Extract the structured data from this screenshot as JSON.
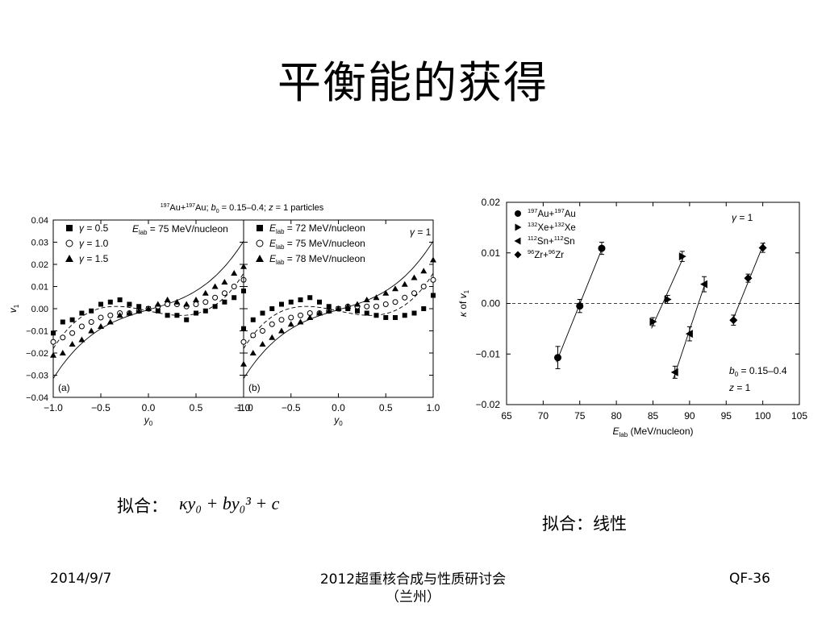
{
  "slide": {
    "title": "平衡能的获得",
    "fit_label_left": "拟合：",
    "fit_formula": "κy₀ + by₀³ + c",
    "fit_label_right": "拟合：线性",
    "footer_date": "2014/9/7",
    "footer_conference": "2012超重核合成与性质研讨会",
    "footer_location": "（兰州）",
    "footer_code": "QF-36"
  },
  "chart_data": [
    {
      "type": "scatter",
      "panel": "a",
      "title": "197Au+197Au; b0 = 0.15–0.4; z = 1 particles",
      "panel_label": "(a)",
      "annotation": "E_lab = 75 MeV/nucleon",
      "xlabel": "y0",
      "ylabel": "v1",
      "xlim": [
        -1.0,
        1.0
      ],
      "ylim": [
        -0.04,
        0.04
      ],
      "xticks": [
        "−1.0",
        "−0.5",
        "0.0",
        "0.5",
        "1.0"
      ],
      "yticks": [
        "0.04",
        "0.03",
        "0.02",
        "0.01",
        "0.00",
        "−0.01",
        "−0.02",
        "−0.03",
        "−0.04"
      ],
      "legend_position": "top-left",
      "series": [
        {
          "name": "γ = 0.5",
          "marker": "square",
          "x": [
            -1.0,
            -0.9,
            -0.8,
            -0.7,
            -0.6,
            -0.5,
            -0.4,
            -0.3,
            -0.2,
            -0.1,
            0.0,
            0.1,
            0.2,
            0.3,
            0.4,
            0.5,
            0.6,
            0.7,
            0.8,
            0.9,
            1.0
          ],
          "y": [
            -0.011,
            -0.006,
            -0.005,
            -0.002,
            -0.001,
            0.002,
            0.003,
            0.004,
            0.002,
            0.001,
            0.0,
            -0.001,
            -0.003,
            -0.003,
            -0.005,
            -0.002,
            -0.001,
            0.001,
            0.003,
            0.005,
            0.008
          ]
        },
        {
          "name": "γ = 1.0",
          "marker": "circle-open",
          "x": [
            -1.0,
            -0.9,
            -0.8,
            -0.7,
            -0.6,
            -0.5,
            -0.4,
            -0.3,
            -0.2,
            -0.1,
            0.0,
            0.1,
            0.2,
            0.3,
            0.4,
            0.5,
            0.6,
            0.7,
            0.8,
            0.9,
            1.0
          ],
          "y": [
            -0.015,
            -0.013,
            -0.011,
            -0.008,
            -0.006,
            -0.004,
            -0.003,
            -0.002,
            -0.002,
            -0.001,
            0.0,
            0.001,
            0.002,
            0.002,
            0.001,
            0.002,
            0.003,
            0.005,
            0.007,
            0.01,
            0.013
          ]
        },
        {
          "name": "γ = 1.5",
          "marker": "triangle",
          "x": [
            -1.0,
            -0.9,
            -0.8,
            -0.7,
            -0.6,
            -0.5,
            -0.4,
            -0.3,
            -0.2,
            -0.1,
            0.0,
            0.1,
            0.2,
            0.3,
            0.4,
            0.5,
            0.6,
            0.7,
            0.8,
            0.9,
            1.0
          ],
          "y": [
            -0.021,
            -0.02,
            -0.016,
            -0.014,
            -0.01,
            -0.008,
            -0.006,
            -0.003,
            -0.002,
            -0.001,
            0.0,
            0.002,
            0.004,
            0.003,
            0.002,
            0.004,
            0.007,
            0.01,
            0.012,
            0.016,
            0.019
          ]
        }
      ],
      "fit_curves": [
        {
          "kappa": 0.0125,
          "b": 0.0185,
          "c": -0.0005
        },
        {
          "kappa": -0.009,
          "b": 0.026,
          "c": -0.001
        }
      ]
    },
    {
      "type": "scatter",
      "panel": "b",
      "panel_label": "(b)",
      "annotation": "γ = 1",
      "xlabel": "y0",
      "xlim": [
        -1.0,
        1.0
      ],
      "ylim": [
        -0.04,
        0.04
      ],
      "xticks": [
        "−1.0",
        "−0.5",
        "0.0",
        "0.5",
        "1.0"
      ],
      "legend_position": "top-left",
      "series": [
        {
          "name": "E_lab = 72 MeV/nucleon",
          "marker": "square",
          "x": [
            -1.0,
            -0.9,
            -0.8,
            -0.7,
            -0.6,
            -0.5,
            -0.4,
            -0.3,
            -0.2,
            -0.1,
            0.0,
            0.1,
            0.2,
            0.3,
            0.4,
            0.5,
            0.6,
            0.7,
            0.8,
            0.9,
            1.0
          ],
          "y": [
            -0.009,
            -0.005,
            -0.002,
            0.0,
            0.002,
            0.003,
            0.004,
            0.005,
            0.003,
            0.001,
            0.0,
            0.0,
            -0.001,
            -0.002,
            -0.003,
            -0.004,
            -0.004,
            -0.003,
            -0.002,
            0.0,
            0.006
          ]
        },
        {
          "name": "E_lab = 75 MeV/nucleon",
          "marker": "circle-open",
          "x": [
            -1.0,
            -0.9,
            -0.8,
            -0.7,
            -0.6,
            -0.5,
            -0.4,
            -0.3,
            -0.2,
            -0.1,
            0.0,
            0.1,
            0.2,
            0.3,
            0.4,
            0.5,
            0.6,
            0.7,
            0.8,
            0.9,
            1.0
          ],
          "y": [
            -0.015,
            -0.012,
            -0.01,
            -0.007,
            -0.005,
            -0.004,
            -0.003,
            -0.002,
            -0.002,
            -0.001,
            0.0,
            0.001,
            0.001,
            0.001,
            0.001,
            0.002,
            0.003,
            0.005,
            0.007,
            0.01,
            0.013
          ]
        },
        {
          "name": "E_lab = 78 MeV/nucleon",
          "marker": "triangle",
          "x": [
            -1.0,
            -0.9,
            -0.8,
            -0.7,
            -0.6,
            -0.5,
            -0.4,
            -0.3,
            -0.2,
            -0.1,
            0.0,
            0.1,
            0.2,
            0.3,
            0.4,
            0.5,
            0.6,
            0.7,
            0.8,
            0.9,
            1.0
          ],
          "y": [
            -0.025,
            -0.02,
            -0.016,
            -0.013,
            -0.01,
            -0.007,
            -0.006,
            -0.004,
            -0.002,
            -0.001,
            0.0,
            0.001,
            0.002,
            0.004,
            0.005,
            0.007,
            0.009,
            0.011,
            0.014,
            0.017,
            0.022
          ]
        }
      ],
      "fit_curves": [
        {
          "kappa": 0.0125,
          "b": 0.0185,
          "c": -0.0005
        },
        {
          "kappa": -0.009,
          "b": 0.026,
          "c": -0.001
        }
      ]
    },
    {
      "type": "scatter",
      "panel": "c",
      "xlabel": "E_lab (MeV/nucleon)",
      "ylabel": "κ of v1",
      "xlim": [
        65,
        105
      ],
      "ylim": [
        -0.02,
        0.02
      ],
      "xticks": [
        "65",
        "70",
        "75",
        "80",
        "85",
        "90",
        "95",
        "100",
        "105"
      ],
      "yticks": [
        "0.02",
        "0.01",
        "0.00",
        "−0.01",
        "−0.02"
      ],
      "legend_position": "top-left",
      "annotations": [
        "γ = 1",
        "b0 = 0.15–0.4",
        "z = 1"
      ],
      "series": [
        {
          "name": "197Au+197Au",
          "marker": "circle",
          "x": [
            72,
            75,
            78
          ],
          "y": [
            -0.0107,
            -0.0005,
            0.0109
          ],
          "err": [
            0.0022,
            0.0013,
            0.0012
          ]
        },
        {
          "name": "132Xe+132Xe",
          "marker": "triangle-right",
          "x": [
            85,
            87,
            89
          ],
          "y": [
            -0.0036,
            0.0008,
            0.0093
          ],
          "err": [
            0.0008,
            0.0008,
            0.001
          ]
        },
        {
          "name": "112Sn+112Sn",
          "marker": "triangle-left",
          "x": [
            88,
            90,
            92
          ],
          "y": [
            -0.0136,
            -0.006,
            0.0038
          ],
          "err": [
            0.0012,
            0.0014,
            0.0015
          ]
        },
        {
          "name": "96Zr+96Zr",
          "marker": "diamond",
          "x": [
            96,
            98,
            100
          ],
          "y": [
            -0.0033,
            0.005,
            0.011
          ],
          "err": [
            0.001,
            0.0008,
            0.0009
          ]
        }
      ]
    }
  ]
}
